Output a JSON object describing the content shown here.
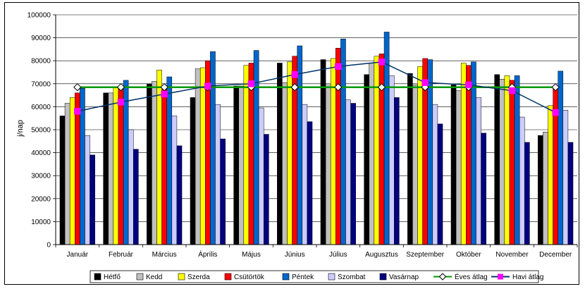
{
  "chart_data": {
    "type": "bar",
    "title": "",
    "xlabel": "",
    "ylabel": "j/nap",
    "ylim": [
      0,
      100000
    ],
    "yticks": [
      "0",
      "10000",
      "20000",
      "30000",
      "40000",
      "50000",
      "60000",
      "70000",
      "80000",
      "90000",
      "100000"
    ],
    "grid": true,
    "legend_position": "bottom",
    "categories": [
      "Január",
      "Február",
      "Március",
      "Április",
      "Május",
      "Június",
      "Július",
      "Augusztus",
      "Szeptember",
      "Október",
      "November",
      "December"
    ],
    "series": [
      {
        "name": "Hétfő",
        "type": "bar",
        "color": "#000000",
        "values": [
          56000,
          66000,
          70000,
          64000,
          69000,
          79000,
          80500,
          74000,
          74500,
          69500,
          74000,
          47500
        ]
      },
      {
        "name": "Kedd",
        "type": "bar",
        "color": "#c0c0c0",
        "values": [
          61500,
          66000,
          71000,
          76500,
          69000,
          70500,
          70000,
          79000,
          69500,
          67000,
          72000,
          49000
        ]
      },
      {
        "name": "Szerda",
        "type": "bar",
        "color": "#ffff00",
        "values": [
          64000,
          68500,
          76000,
          77000,
          78000,
          79500,
          81000,
          82000,
          77500,
          79000,
          73500,
          60500
        ]
      },
      {
        "name": "Csütörtök",
        "type": "bar",
        "color": "#ff0000",
        "values": [
          66000,
          69000,
          67500,
          80000,
          79000,
          82000,
          85500,
          83000,
          81000,
          78000,
          71500,
          69000
        ]
      },
      {
        "name": "Péntek",
        "type": "bar",
        "color": "#0066cc",
        "values": [
          68000,
          71500,
          73000,
          84000,
          84500,
          86500,
          89500,
          92500,
          80500,
          79500,
          73500,
          75500
        ]
      },
      {
        "name": "Szombat",
        "type": "bar",
        "color": "#ccccff",
        "values": [
          47500,
          50000,
          56000,
          61000,
          59500,
          61000,
          63000,
          73500,
          61000,
          64000,
          55500,
          58500
        ]
      },
      {
        "name": "Vasárnap",
        "type": "bar",
        "color": "#000080",
        "values": [
          39000,
          41500,
          43000,
          46000,
          48000,
          53500,
          61500,
          64000,
          52500,
          48500,
          44500,
          44500
        ]
      },
      {
        "name": "Éves átlag",
        "type": "line",
        "color": "#009900",
        "marker": "diamond",
        "values": [
          68500,
          68500,
          68500,
          68500,
          68500,
          68500,
          68500,
          68500,
          68500,
          68500,
          68500,
          68500
        ]
      },
      {
        "name": "Havi átlag",
        "type": "line",
        "color": "#003366",
        "marker": "square-magenta",
        "values": [
          58000,
          62000,
          65500,
          69000,
          70000,
          74000,
          77500,
          79500,
          70500,
          69500,
          67000,
          57500
        ]
      }
    ]
  }
}
